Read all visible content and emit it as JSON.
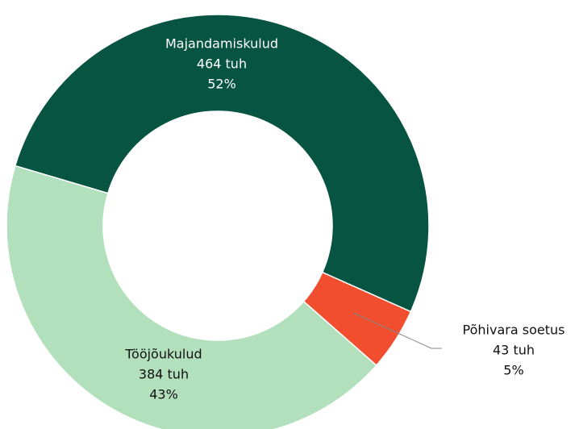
{
  "chart_data": {
    "type": "donut",
    "categories": [
      "Majandamiskulud",
      "Põhivara soetus",
      "Tööjõukulud"
    ],
    "values": [
      464,
      43,
      384
    ],
    "value_labels": [
      "464 tuh",
      "43 tuh",
      "384 tuh"
    ],
    "percent_labels": [
      "52%",
      "5%",
      "43%"
    ],
    "colors": [
      "#065441",
      "#f04e2e",
      "#b2e0bc"
    ]
  }
}
